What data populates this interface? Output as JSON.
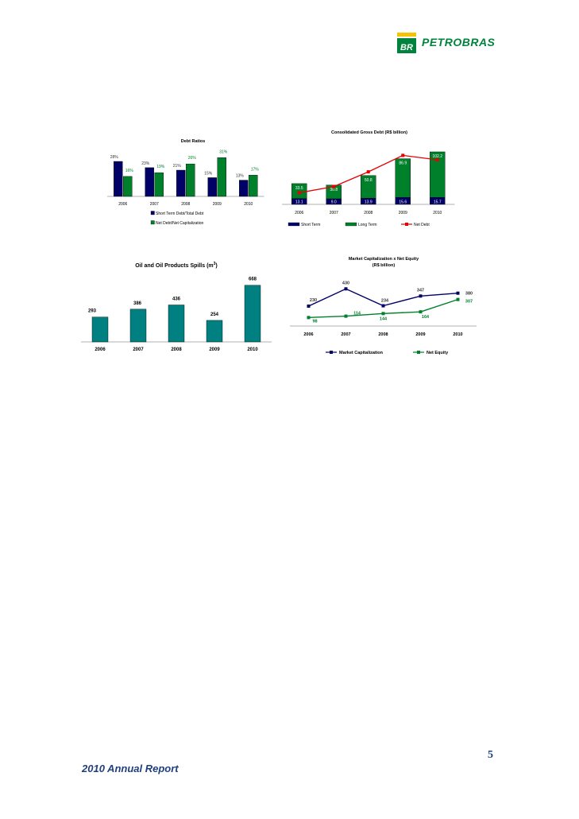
{
  "header": {
    "brand": "PETROBRAS",
    "mark": "BR"
  },
  "footer": {
    "title": "2010 Annual Report",
    "page_number": "5"
  },
  "colors": {
    "navy": "#000066",
    "green": "#00802b",
    "teal": "#008080",
    "red": "#e60000",
    "brand_green": "#00843d",
    "brand_yellow": "#f5c400",
    "footer_blue": "#1f3f7f"
  },
  "chart_data": [
    {
      "id": "debt_ratios",
      "type": "bar",
      "title": "Debt Ratios",
      "categories": [
        "2006",
        "2007",
        "2008",
        "2009",
        "2010"
      ],
      "series": [
        {
          "name": "Short Term Debt/Total Debt",
          "values": [
            28,
            23,
            21,
            15,
            13
          ],
          "labels": [
            "28%",
            "23%",
            "21%",
            "15%",
            "13%"
          ]
        },
        {
          "name": "Net Debt/Net Capitalization",
          "values": [
            16,
            19,
            26,
            31,
            17
          ],
          "labels": [
            "16%",
            "19%",
            "26%",
            "31%",
            "17%"
          ]
        }
      ],
      "ylim": [
        0,
        35
      ],
      "grid": false,
      "legend": "bottom"
    },
    {
      "id": "gross_debt",
      "type": "bar",
      "stacked": true,
      "title": "Consolidated Gross Debt (R$ billion)",
      "categories": [
        "2006",
        "2007",
        "2008",
        "2009",
        "2010"
      ],
      "series": [
        {
          "name": "Short Term",
          "values": [
            13.1,
            9.0,
            13.9,
            15.6,
            15.7
          ],
          "labels": [
            "13.1",
            "9.0",
            "13.9",
            "15.6",
            "15.7"
          ]
        },
        {
          "name": "Long Term",
          "values": [
            33.5,
            30.8,
            50.8,
            86.9,
            102.2
          ],
          "labels": [
            "33.5",
            "30.8",
            "50.8",
            "86.9",
            "102.2"
          ]
        },
        {
          "name": "Net Debt",
          "type": "line",
          "values": [
            26,
            40,
            73,
            110,
            100
          ]
        }
      ],
      "ylim": [
        0,
        125
      ],
      "grid": false,
      "legend": "bottom"
    },
    {
      "id": "spills",
      "type": "bar",
      "title_main": "Oil and Oil Products Spills (m",
      "title_sup": "3",
      "title_end": ")",
      "categories": [
        "2006",
        "2007",
        "2008",
        "2009",
        "2010"
      ],
      "values": [
        293,
        386,
        436,
        254,
        668
      ],
      "labels": [
        "293",
        "386",
        "436",
        "254",
        "668"
      ],
      "ylim": [
        0,
        750
      ],
      "grid": false
    },
    {
      "id": "market_cap",
      "type": "line",
      "title": "Market Capitalization x Net Equity",
      "subtitle": "(R$ billion)",
      "categories": [
        "2006",
        "2007",
        "2008",
        "2009",
        "2010"
      ],
      "series": [
        {
          "name": "Market Capitalization",
          "values": [
            230,
            430,
            234,
            347,
            380
          ],
          "labels": [
            "230",
            "430",
            "234",
            "347",
            "380"
          ]
        },
        {
          "name": "Net Equity",
          "values": [
            98,
            114,
            144,
            164,
            307
          ],
          "labels": [
            "98",
            "114",
            "144",
            "164",
            "307"
          ]
        }
      ],
      "ylim": [
        0,
        460
      ],
      "grid": false,
      "legend": "bottom"
    }
  ]
}
